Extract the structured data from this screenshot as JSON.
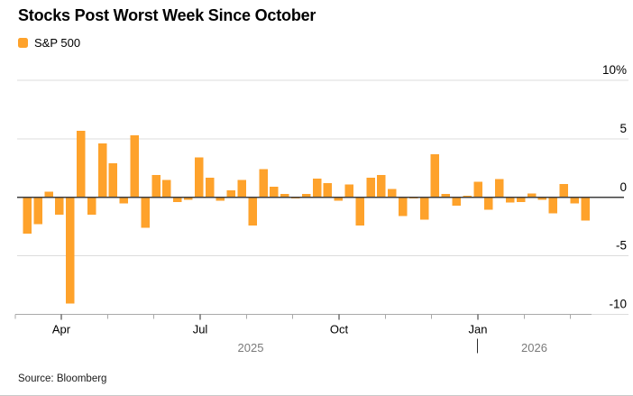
{
  "header": {
    "title": "Stocks Post Worst Week Since October"
  },
  "legend": {
    "label": "S&P 500"
  },
  "footer": {
    "source": "Source: Bloomberg"
  },
  "colors": {
    "bar_orange": "#FEA22B",
    "gridline": "#DCDCDC",
    "zero_line": "#3D3D3D",
    "axis_line": "#A9A9A9",
    "major_tick": "#2B2B2B",
    "year_text": "#7A7A7A",
    "text": "#000000"
  },
  "chart_data": {
    "type": "bar",
    "title": "Stocks Post Worst Week Since October",
    "series_name": "S&P 500",
    "unit": "%",
    "description": "Weekly percent change bars from early March 2025 through early March 2026",
    "values": [
      -3.1,
      -2.3,
      0.5,
      -1.5,
      -9.1,
      5.7,
      -1.5,
      4.6,
      2.9,
      -0.5,
      5.3,
      -2.6,
      1.9,
      1.5,
      -0.4,
      -0.2,
      3.4,
      1.7,
      -0.3,
      0.6,
      1.5,
      -2.4,
      2.4,
      0.9,
      0.3,
      -0.1,
      0.3,
      1.6,
      1.2,
      -0.3,
      1.1,
      -2.4,
      1.7,
      1.9,
      0.7,
      -1.6,
      -0.1,
      -1.9,
      3.7,
      0.3,
      -0.7,
      0.15,
      1.35,
      -1.05,
      1.55,
      -0.45,
      -0.4,
      0.35,
      -0.2,
      -1.35,
      1.15,
      -0.5,
      -2.0
    ],
    "y_ticks": [
      {
        "label": "10%",
        "value": 10
      },
      {
        "label": "5",
        "value": 5
      },
      {
        "label": "0",
        "value": 0
      },
      {
        "label": "-5",
        "value": -5
      },
      {
        "label": "-10",
        "value": -10
      }
    ],
    "ylim": [
      -10,
      10
    ],
    "x_tick_labels": [
      "Apr",
      "Jul",
      "Oct",
      "Jan"
    ],
    "year_labels": [
      "2025",
      "2026"
    ],
    "grid": true,
    "legend_position": "top-left"
  }
}
